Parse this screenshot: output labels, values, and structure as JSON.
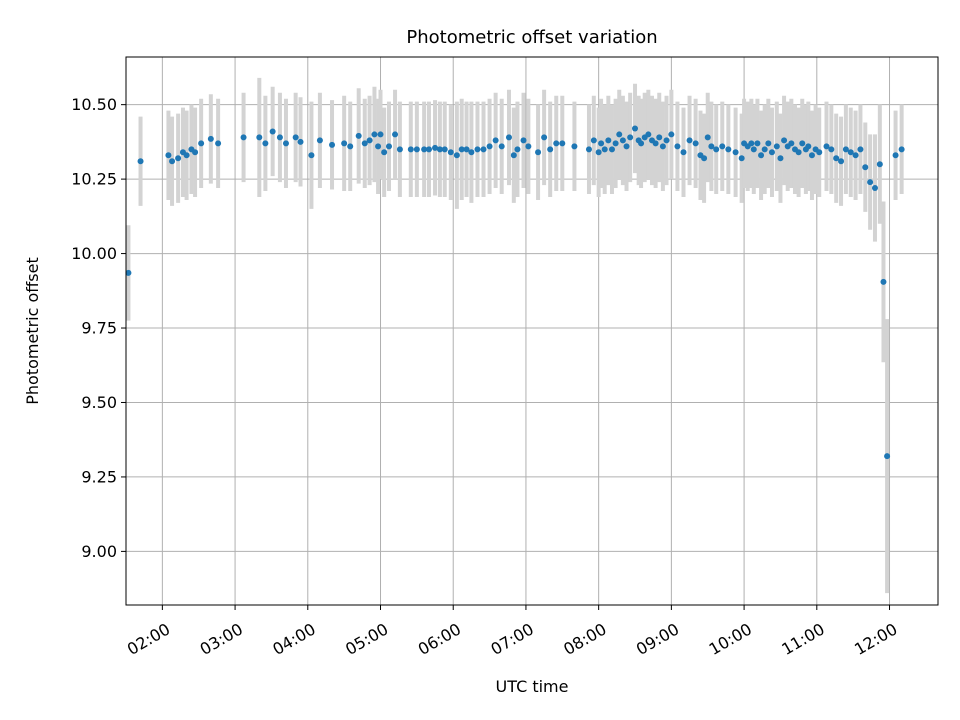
{
  "chart_data": {
    "type": "scatter",
    "title": "Photometric offset variation",
    "xlabel": "UTC time",
    "ylabel": "Photometric offset",
    "x_unit": "UTC hour (decimal)",
    "xlim": [
      "01:30",
      "12:40"
    ],
    "ylim": [
      8.82,
      10.66
    ],
    "xticks": [
      "02:00",
      "03:00",
      "04:00",
      "05:00",
      "06:00",
      "07:00",
      "08:00",
      "09:00",
      "10:00",
      "11:00",
      "12:00"
    ],
    "yticks": [
      "9.00",
      "9.25",
      "9.50",
      "9.75",
      "10.00",
      "10.25",
      "10.50"
    ],
    "grid": true,
    "colors": {
      "points": "#1f77b4",
      "errorbars": "#d3d3d3",
      "grid": "#b0b0b0"
    },
    "series": [
      {
        "x": [
          "01:32",
          "01:42",
          "02:05",
          "02:08",
          "02:13",
          "02:17",
          "02:20",
          "02:24",
          "02:27",
          "02:32",
          "02:40",
          "02:46",
          "03:07",
          "03:20",
          "03:25",
          "03:31",
          "03:37",
          "03:42",
          "03:50",
          "03:54",
          "04:03",
          "04:10",
          "04:20",
          "04:30",
          "04:35",
          "04:42",
          "04:47",
          "04:51",
          "04:55",
          "04:58",
          "05:00",
          "05:03",
          "05:07",
          "05:12",
          "05:16",
          "05:25",
          "05:30",
          "05:36",
          "05:40",
          "05:45",
          "05:49",
          "05:53",
          "05:58",
          "06:03",
          "06:07",
          "06:11",
          "06:15",
          "06:20",
          "06:25",
          "06:30",
          "06:35",
          "06:40",
          "06:46",
          "06:50",
          "06:53",
          "06:58",
          "07:02",
          "07:10",
          "07:15",
          "07:20",
          "07:25",
          "07:30",
          "07:40",
          "07:52",
          "07:56",
          "08:00",
          "08:02",
          "08:05",
          "08:08",
          "08:11",
          "08:14",
          "08:17",
          "08:20",
          "08:23",
          "08:26",
          "08:30",
          "08:33",
          "08:35",
          "08:38",
          "08:41",
          "08:44",
          "08:47",
          "08:50",
          "08:53",
          "08:56",
          "09:00",
          "09:05",
          "09:10",
          "09:15",
          "09:20",
          "09:24",
          "09:27",
          "09:30",
          "09:33",
          "09:37",
          "09:42",
          "09:47",
          "09:53",
          "09:58",
          "10:00",
          "10:03",
          "10:06",
          "10:08",
          "10:11",
          "10:14",
          "10:17",
          "10:20",
          "10:23",
          "10:27",
          "10:30",
          "10:33",
          "10:36",
          "10:39",
          "10:42",
          "10:45",
          "10:48",
          "10:51",
          "10:53",
          "10:56",
          "10:59",
          "11:02",
          "11:08",
          "11:12",
          "11:16",
          "11:20",
          "11:24",
          "11:28",
          "11:32",
          "11:36",
          "11:40",
          "11:44",
          "11:48",
          "11:52",
          "11:55",
          "11:58",
          "12:05",
          "12:10"
        ],
        "y": [
          9.935,
          10.31,
          10.33,
          10.31,
          10.32,
          10.34,
          10.33,
          10.35,
          10.34,
          10.37,
          10.385,
          10.37,
          10.39,
          10.39,
          10.37,
          10.41,
          10.39,
          10.37,
          10.39,
          10.375,
          10.33,
          10.38,
          10.365,
          10.37,
          10.36,
          10.395,
          10.37,
          10.38,
          10.4,
          10.36,
          10.4,
          10.34,
          10.36,
          10.4,
          10.35,
          10.35,
          10.35,
          10.35,
          10.35,
          10.355,
          10.35,
          10.35,
          10.34,
          10.33,
          10.35,
          10.35,
          10.34,
          10.35,
          10.35,
          10.36,
          10.38,
          10.36,
          10.39,
          10.33,
          10.35,
          10.38,
          10.36,
          10.34,
          10.39,
          10.35,
          10.37,
          10.37,
          10.36,
          10.35,
          10.38,
          10.34,
          10.37,
          10.35,
          10.38,
          10.35,
          10.37,
          10.4,
          10.38,
          10.36,
          10.39,
          10.42,
          10.38,
          10.37,
          10.39,
          10.4,
          10.38,
          10.37,
          10.39,
          10.36,
          10.38,
          10.4,
          10.36,
          10.34,
          10.38,
          10.37,
          10.33,
          10.32,
          10.39,
          10.36,
          10.35,
          10.36,
          10.35,
          10.34,
          10.32,
          10.37,
          10.36,
          10.37,
          10.35,
          10.37,
          10.33,
          10.35,
          10.37,
          10.34,
          10.36,
          10.32,
          10.38,
          10.36,
          10.37,
          10.35,
          10.34,
          10.37,
          10.35,
          10.36,
          10.33,
          10.35,
          10.34,
          10.36,
          10.35,
          10.32,
          10.31,
          10.35,
          10.34,
          10.33,
          10.35,
          10.29,
          10.24,
          10.22,
          10.3,
          9.905,
          9.32,
          10.33,
          10.35
        ],
        "yerr": [
          0.16,
          0.15,
          0.15,
          0.15,
          0.15,
          0.15,
          0.15,
          0.15,
          0.15,
          0.15,
          0.15,
          0.15,
          0.15,
          0.2,
          0.16,
          0.15,
          0.15,
          0.15,
          0.15,
          0.15,
          0.18,
          0.16,
          0.15,
          0.16,
          0.15,
          0.16,
          0.15,
          0.15,
          0.16,
          0.16,
          0.15,
          0.15,
          0.15,
          0.15,
          0.16,
          0.16,
          0.16,
          0.16,
          0.16,
          0.16,
          0.16,
          0.16,
          0.16,
          0.18,
          0.17,
          0.16,
          0.17,
          0.16,
          0.16,
          0.16,
          0.16,
          0.16,
          0.16,
          0.16,
          0.16,
          0.16,
          0.16,
          0.16,
          0.16,
          0.16,
          0.16,
          0.16,
          0.15,
          0.15,
          0.15,
          0.15,
          0.15,
          0.15,
          0.15,
          0.15,
          0.15,
          0.15,
          0.15,
          0.15,
          0.15,
          0.15,
          0.15,
          0.15,
          0.15,
          0.15,
          0.15,
          0.15,
          0.15,
          0.15,
          0.15,
          0.15,
          0.15,
          0.15,
          0.15,
          0.15,
          0.15,
          0.15,
          0.15,
          0.15,
          0.15,
          0.15,
          0.15,
          0.15,
          0.15,
          0.15,
          0.15,
          0.15,
          0.15,
          0.15,
          0.15,
          0.15,
          0.15,
          0.15,
          0.15,
          0.15,
          0.15,
          0.15,
          0.15,
          0.15,
          0.15,
          0.15,
          0.15,
          0.15,
          0.15,
          0.15,
          0.15,
          0.15,
          0.15,
          0.15,
          0.15,
          0.15,
          0.15,
          0.15,
          0.15,
          0.15,
          0.16,
          0.18,
          0.2,
          0.27,
          0.46,
          0.15,
          0.15
        ]
      }
    ]
  }
}
